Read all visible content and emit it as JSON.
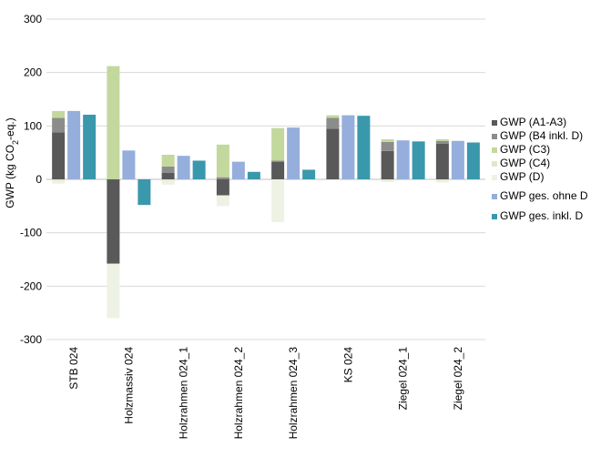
{
  "chart_data": {
    "type": "bar",
    "ylabel_main": "GWP (kg CO",
    "ylabel_sub": "2",
    "ylabel_tail": "-eq.)",
    "ylim": [
      -300,
      300
    ],
    "yticks": [
      300,
      200,
      100,
      0,
      -100,
      -200,
      -300
    ],
    "grid": true,
    "legend_position": "right",
    "categories": [
      "STB 024",
      "Holzmassiv 024",
      "Holzrahmen 024_1",
      "Holzrahmen 024_2",
      "Holzrahmen 024_3",
      "KS 024",
      "Ziegel 024_1",
      "Ziegel 024_2"
    ],
    "stack_series": [
      {
        "name": "GWP (A1-A3)",
        "color": "#595959",
        "values": [
          88,
          -158,
          12,
          -30,
          33,
          95,
          53,
          67
        ]
      },
      {
        "name": "GWP (B4 inkl. D)",
        "color": "#8c8c8c",
        "values": [
          27,
          0,
          12,
          4,
          2,
          20,
          17,
          5
        ]
      },
      {
        "name": "GWP (C3)",
        "color": "#c3d89d",
        "values": [
          13,
          212,
          22,
          61,
          61,
          5,
          5,
          3
        ]
      },
      {
        "name": "GWP (C4)",
        "color": "#dfe9c9",
        "values": [
          -3,
          0,
          -3,
          0,
          0,
          -1,
          -3,
          -3
        ]
      },
      {
        "name": "GWP (D)",
        "color": "#eef2e4",
        "values": [
          -5,
          -102,
          -7,
          -20,
          -80,
          -1,
          -2,
          -3
        ]
      }
    ],
    "side_series": [
      {
        "name": "GWP ges. ohne D",
        "color": "#95aedc",
        "values": [
          128,
          54,
          44,
          33,
          97,
          120,
          73,
          72
        ]
      },
      {
        "name": "GWP ges. inkl. D",
        "color": "#3a98ac",
        "values": [
          121,
          -48,
          35,
          14,
          18,
          119,
          71,
          69
        ]
      }
    ]
  }
}
